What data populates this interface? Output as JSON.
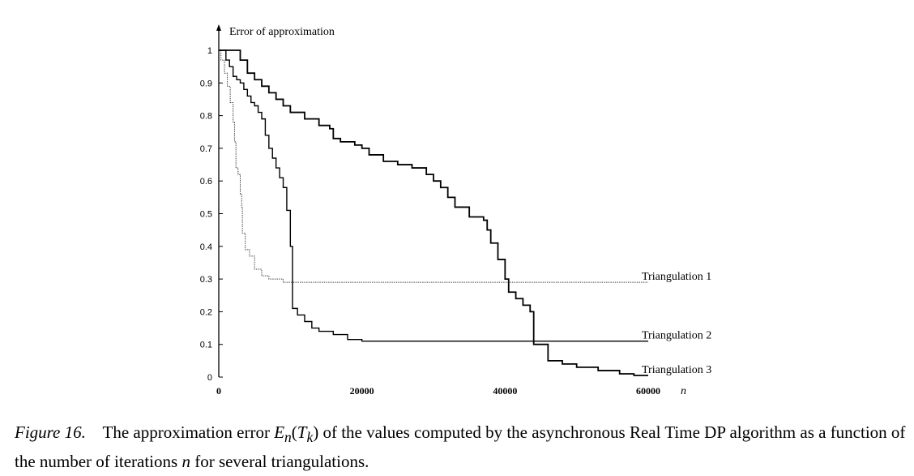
{
  "chart_data": {
    "type": "line",
    "ylabel": "Error of approximation",
    "xlabel": "n",
    "xlim": [
      0,
      60000
    ],
    "ylim": [
      0,
      1
    ],
    "x_ticks": [
      {
        "value": 0,
        "label": "0"
      },
      {
        "value": 20000,
        "label": "20000"
      },
      {
        "value": 40000,
        "label": "40000"
      },
      {
        "value": 60000,
        "label": "60000"
      }
    ],
    "y_ticks": [
      {
        "value": 0,
        "label": "0"
      },
      {
        "value": 0.1,
        "label": "0.1"
      },
      {
        "value": 0.2,
        "label": "0.2"
      },
      {
        "value": 0.3,
        "label": "0.3"
      },
      {
        "value": 0.4,
        "label": "0.4"
      },
      {
        "value": 0.5,
        "label": "0.5"
      },
      {
        "value": 0.6,
        "label": "0.6"
      },
      {
        "value": 0.7,
        "label": "0.7"
      },
      {
        "value": 0.8,
        "label": "0.8"
      },
      {
        "value": 0.9,
        "label": "0.9"
      },
      {
        "value": 1,
        "label": "1"
      }
    ],
    "grid": false,
    "legend": "none (series labeled at right end of lines)",
    "series": [
      {
        "name": "Triangulation 1",
        "style": "dotted",
        "points": [
          [
            0,
            1.0
          ],
          [
            300,
            0.97
          ],
          [
            800,
            0.93
          ],
          [
            1200,
            0.89
          ],
          [
            1600,
            0.84
          ],
          [
            2000,
            0.78
          ],
          [
            2200,
            0.72
          ],
          [
            2400,
            0.64
          ],
          [
            2700,
            0.62
          ],
          [
            3000,
            0.56
          ],
          [
            3200,
            0.52
          ],
          [
            3300,
            0.44
          ],
          [
            3700,
            0.39
          ],
          [
            4300,
            0.37
          ],
          [
            5000,
            0.33
          ],
          [
            6000,
            0.31
          ],
          [
            7000,
            0.3
          ],
          [
            9000,
            0.29
          ],
          [
            20000,
            0.29
          ],
          [
            40000,
            0.29
          ],
          [
            60000,
            0.29
          ]
        ]
      },
      {
        "name": "Triangulation 2",
        "style": "solid",
        "points": [
          [
            0,
            1.0
          ],
          [
            1000,
            0.97
          ],
          [
            1500,
            0.95
          ],
          [
            2000,
            0.92
          ],
          [
            2500,
            0.91
          ],
          [
            3000,
            0.9
          ],
          [
            3500,
            0.88
          ],
          [
            4000,
            0.86
          ],
          [
            4500,
            0.84
          ],
          [
            5000,
            0.83
          ],
          [
            5500,
            0.81
          ],
          [
            6000,
            0.79
          ],
          [
            6500,
            0.74
          ],
          [
            7000,
            0.7
          ],
          [
            7500,
            0.67
          ],
          [
            8000,
            0.64
          ],
          [
            8500,
            0.61
          ],
          [
            9000,
            0.58
          ],
          [
            9500,
            0.51
          ],
          [
            10000,
            0.4
          ],
          [
            10300,
            0.21
          ],
          [
            11000,
            0.19
          ],
          [
            12000,
            0.17
          ],
          [
            13000,
            0.15
          ],
          [
            14000,
            0.14
          ],
          [
            16000,
            0.13
          ],
          [
            18000,
            0.115
          ],
          [
            20000,
            0.11
          ],
          [
            40000,
            0.11
          ],
          [
            60000,
            0.11
          ]
        ]
      },
      {
        "name": "Triangulation 3",
        "style": "solid-thick",
        "points": [
          [
            0,
            1.0
          ],
          [
            3000,
            0.97
          ],
          [
            4000,
            0.93
          ],
          [
            5000,
            0.91
          ],
          [
            6000,
            0.89
          ],
          [
            7000,
            0.87
          ],
          [
            8000,
            0.85
          ],
          [
            9000,
            0.83
          ],
          [
            10000,
            0.81
          ],
          [
            12000,
            0.79
          ],
          [
            14000,
            0.77
          ],
          [
            15500,
            0.76
          ],
          [
            16000,
            0.73
          ],
          [
            17000,
            0.72
          ],
          [
            19000,
            0.71
          ],
          [
            20000,
            0.7
          ],
          [
            21000,
            0.68
          ],
          [
            23000,
            0.66
          ],
          [
            25000,
            0.65
          ],
          [
            27000,
            0.64
          ],
          [
            29000,
            0.62
          ],
          [
            30000,
            0.6
          ],
          [
            31000,
            0.58
          ],
          [
            32000,
            0.55
          ],
          [
            33000,
            0.52
          ],
          [
            35000,
            0.49
          ],
          [
            37000,
            0.48
          ],
          [
            37500,
            0.45
          ],
          [
            38000,
            0.41
          ],
          [
            39000,
            0.36
          ],
          [
            40000,
            0.3
          ],
          [
            40500,
            0.26
          ],
          [
            41500,
            0.24
          ],
          [
            42500,
            0.22
          ],
          [
            43500,
            0.2
          ],
          [
            44000,
            0.1
          ],
          [
            46000,
            0.05
          ],
          [
            48000,
            0.04
          ],
          [
            50000,
            0.03
          ],
          [
            53000,
            0.02
          ],
          [
            56000,
            0.01
          ],
          [
            58000,
            0.005
          ],
          [
            60000,
            0.005
          ]
        ]
      }
    ]
  },
  "caption": {
    "figure_label": "Figure 16.",
    "text_before_math": "The approximation error",
    "math_symbol": "E",
    "math_sub": "n",
    "math_open": "(",
    "math_arg": "T",
    "math_arg_sub": "k",
    "math_close": ")",
    "text_after_math": "of the values computed by the asynchronous Real Time DP algorithm as a function of the number of iterations",
    "var_n": "n",
    "text_end": "for several triangulations."
  }
}
